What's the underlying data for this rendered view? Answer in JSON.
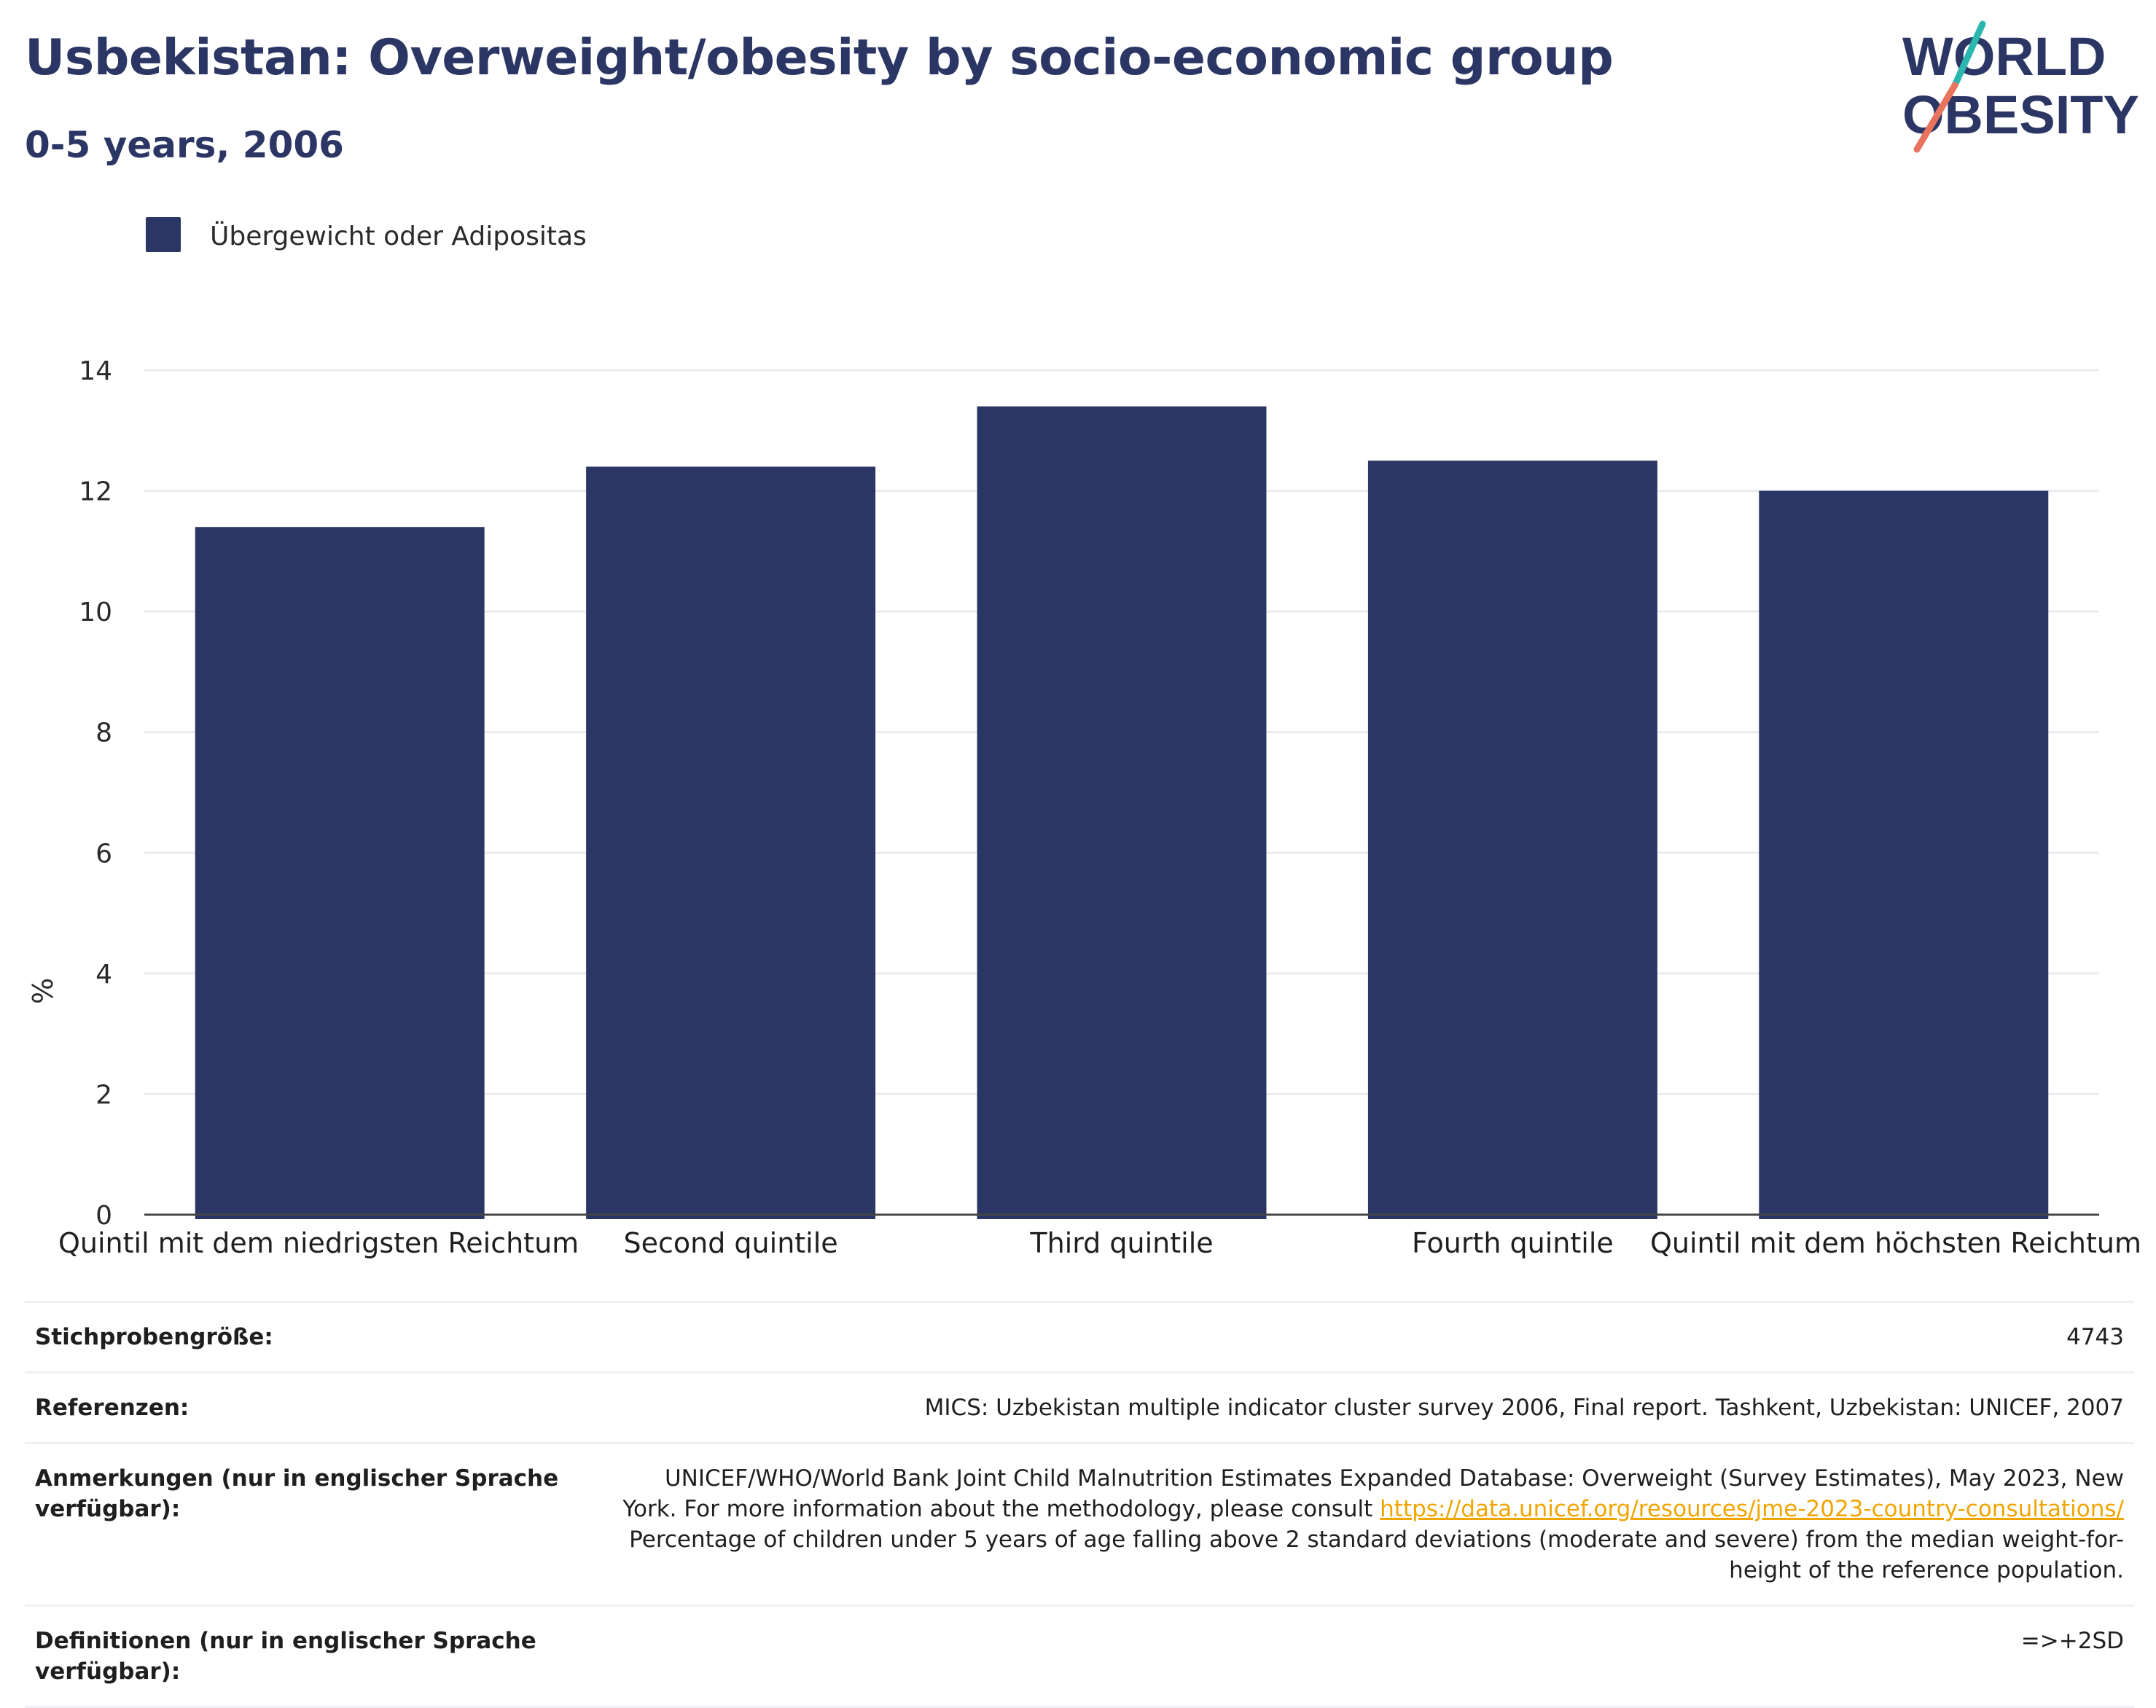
{
  "header": {
    "title": "Usbekistan: Overweight/obesity by socio-economic group",
    "subtitle": "0-5 years, 2006",
    "logo_line1": "WORLD",
    "logo_line2": "OBESITY"
  },
  "colors": {
    "bar": "#2b3664",
    "title": "#2b3664",
    "grid": "#e9ebef",
    "link": "#f0a500",
    "logo_teal": "#2bb6b0",
    "logo_coral": "#e8735f"
  },
  "chart_data": {
    "type": "bar",
    "categories": [
      "Quintil mit dem niedrigsten Reichtum",
      "Second quintile",
      "Third quintile",
      "Fourth quintile",
      "Quintil mit dem höchsten Reichtum"
    ],
    "series": [
      {
        "name": "Übergewicht oder Adipositas",
        "values": [
          11.4,
          12.4,
          13.4,
          12.5,
          12.0
        ]
      }
    ],
    "ylabel": "%",
    "ylim": [
      0,
      14
    ],
    "yticks": [
      0,
      2,
      4,
      6,
      8,
      10,
      12,
      14
    ],
    "grid": true,
    "legend_position": "top-left"
  },
  "info_table": [
    {
      "label": "Stichprobengröße:",
      "value": "4743"
    },
    {
      "label": "Referenzen:",
      "value": "MICS: Uzbekistan multiple indicator cluster survey 2006, Final report. Tashkent, Uzbekistan: UNICEF, 2007"
    },
    {
      "label": "Anmerkungen (nur in englischer Sprache verfügbar):",
      "value_before_link": "UNICEF/WHO/World Bank Joint Child Malnutrition Estimates Expanded Database: Overweight (Survey Estimates), May 2023, New York. For more information about the methodology, please consult ",
      "link": "https://data.unicef.org/resources/jme-2023-country-consultations/",
      "value_after_link": " Percentage of children under 5 years of age falling above 2 standard deviations (moderate and severe) from the median weight-for-height of the reference population."
    },
    {
      "label": "Definitionen (nur in englischer Sprache verfügbar):",
      "value": "=>+2SD"
    }
  ]
}
